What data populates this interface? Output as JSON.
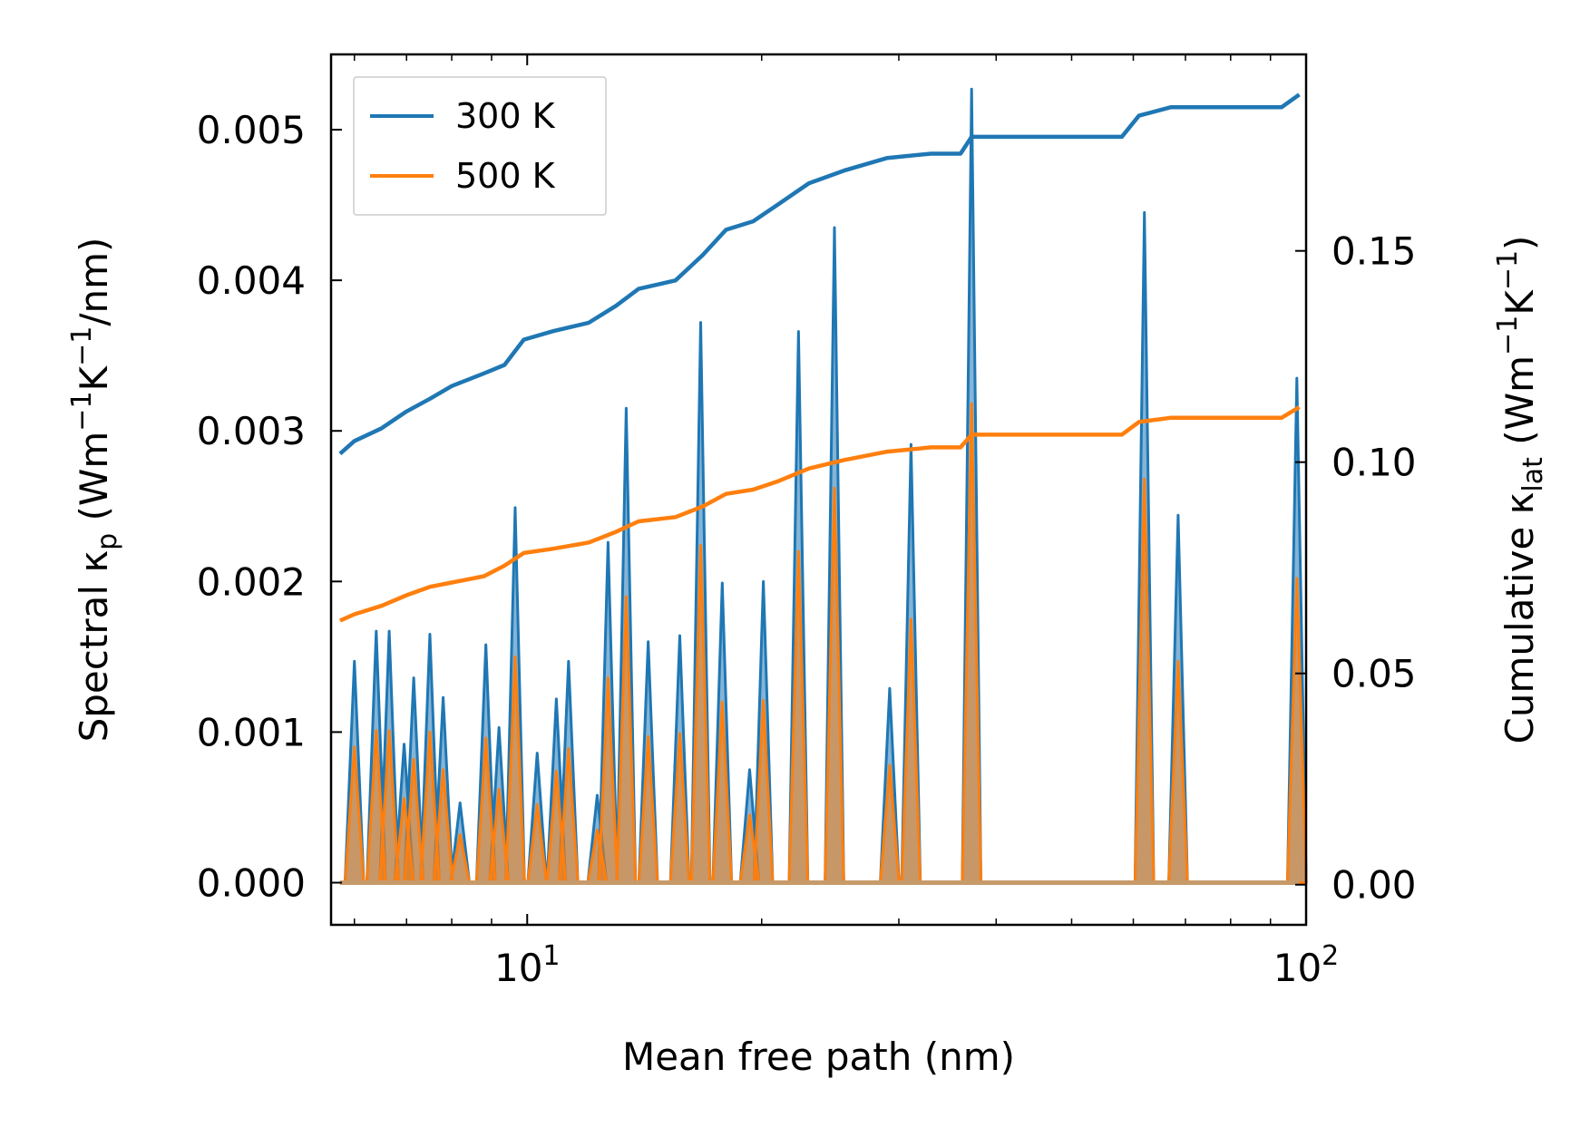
{
  "chart_data": {
    "type": "line",
    "xscale": "log",
    "xlabel": "Mean free path (nm)",
    "ylabel_left": "Spectral κ",
    "ylabel_left_sub": "p",
    "ylabel_left_units": "(Wm",
    "ylabel_right": "Cumulative κ",
    "ylabel_right_sub": "lat",
    "ylabel_right_units": "(Wm",
    "xlim": [
      5.6,
      100
    ],
    "ylim_left": [
      -0.00028,
      0.0055
    ],
    "ylim_right": [
      -0.0095,
      0.1965
    ],
    "x_ticks": [
      {
        "value": 10,
        "label": "10",
        "exp": "1"
      },
      {
        "value": 100,
        "label": "10",
        "exp": "2"
      }
    ],
    "y_left_ticks": [
      {
        "value": 0.0,
        "label": "0.000"
      },
      {
        "value": 0.001,
        "label": "0.001"
      },
      {
        "value": 0.002,
        "label": "0.002"
      },
      {
        "value": 0.003,
        "label": "0.003"
      },
      {
        "value": 0.004,
        "label": "0.004"
      },
      {
        "value": 0.005,
        "label": "0.005"
      }
    ],
    "y_right_ticks": [
      {
        "value": 0.0,
        "label": "0.00"
      },
      {
        "value": 0.05,
        "label": "0.05"
      },
      {
        "value": 0.1,
        "label": "0.10"
      },
      {
        "value": 0.15,
        "label": "0.15"
      }
    ],
    "legend": {
      "placement": "top-left",
      "entries": [
        {
          "label": "300 K",
          "color": "#1f77b4"
        },
        {
          "label": "500 K",
          "color": "#ff7f0e"
        }
      ]
    },
    "series": [
      {
        "name": "300 K",
        "color": "#1f77b4",
        "spectral_peaks": [
          [
            6.0,
            0.00147
          ],
          [
            6.4,
            0.00167
          ],
          [
            6.65,
            0.00167
          ],
          [
            6.95,
            0.00092
          ],
          [
            7.15,
            0.00136
          ],
          [
            7.5,
            0.00165
          ],
          [
            7.8,
            0.00123
          ],
          [
            8.2,
            0.00053
          ],
          [
            8.85,
            0.00158
          ],
          [
            9.2,
            0.00103
          ],
          [
            9.65,
            0.00249
          ],
          [
            10.3,
            0.00086
          ],
          [
            10.9,
            0.00122
          ],
          [
            11.3,
            0.00147
          ],
          [
            12.3,
            0.00058
          ],
          [
            12.7,
            0.00226
          ],
          [
            13.4,
            0.00315
          ],
          [
            14.3,
            0.0016
          ],
          [
            15.7,
            0.00164
          ],
          [
            16.7,
            0.00372
          ],
          [
            17.8,
            0.00199
          ],
          [
            19.3,
            0.00075
          ],
          [
            20.1,
            0.002
          ],
          [
            22.3,
            0.00366
          ],
          [
            24.8,
            0.00435
          ],
          [
            29.2,
            0.00129
          ],
          [
            31.1,
            0.00291
          ],
          [
            37.2,
            0.00527
          ],
          [
            62.0,
            0.00445
          ],
          [
            68.5,
            0.00244
          ],
          [
            97.3,
            0.00335
          ]
        ],
        "cumulative": [
          [
            5.75,
            0.102
          ],
          [
            6.0,
            0.105
          ],
          [
            6.5,
            0.108
          ],
          [
            7.0,
            0.112
          ],
          [
            7.5,
            0.115
          ],
          [
            8.0,
            0.118
          ],
          [
            8.8,
            0.121
          ],
          [
            9.35,
            0.123
          ],
          [
            9.9,
            0.129
          ],
          [
            10.8,
            0.131
          ],
          [
            12.0,
            0.133
          ],
          [
            13.0,
            0.137
          ],
          [
            13.9,
            0.141
          ],
          [
            15.5,
            0.143
          ],
          [
            16.8,
            0.149
          ],
          [
            18.0,
            0.155
          ],
          [
            19.5,
            0.157
          ],
          [
            21.0,
            0.161
          ],
          [
            23.0,
            0.166
          ],
          [
            25.5,
            0.169
          ],
          [
            29.0,
            0.172
          ],
          [
            33.0,
            0.173
          ],
          [
            36.0,
            0.173
          ],
          [
            37.2,
            0.177
          ],
          [
            58.0,
            0.177
          ],
          [
            61.0,
            0.182
          ],
          [
            67.0,
            0.184
          ],
          [
            93.0,
            0.184
          ],
          [
            98.0,
            0.187
          ]
        ]
      },
      {
        "name": "500 K",
        "color": "#ff7f0e",
        "spectral_peaks": [
          [
            6.0,
            0.0009
          ],
          [
            6.4,
            0.00101
          ],
          [
            6.65,
            0.00101
          ],
          [
            6.95,
            0.00056
          ],
          [
            7.15,
            0.00082
          ],
          [
            7.5,
            0.001
          ],
          [
            7.8,
            0.00075
          ],
          [
            8.2,
            0.00032
          ],
          [
            8.85,
            0.00096
          ],
          [
            9.2,
            0.00062
          ],
          [
            9.65,
            0.0015
          ],
          [
            10.3,
            0.00052
          ],
          [
            10.9,
            0.00074
          ],
          [
            11.3,
            0.00089
          ],
          [
            12.3,
            0.00035
          ],
          [
            12.7,
            0.00136
          ],
          [
            13.4,
            0.0019
          ],
          [
            14.3,
            0.00097
          ],
          [
            15.7,
            0.00099
          ],
          [
            16.7,
            0.00224
          ],
          [
            17.8,
            0.0012
          ],
          [
            19.3,
            0.00045
          ],
          [
            20.1,
            0.00121
          ],
          [
            22.3,
            0.0022
          ],
          [
            24.8,
            0.00262
          ],
          [
            29.2,
            0.00078
          ],
          [
            31.1,
            0.00175
          ],
          [
            37.2,
            0.00318
          ],
          [
            62.0,
            0.00268
          ],
          [
            68.5,
            0.00147
          ],
          [
            97.3,
            0.00202
          ]
        ],
        "cumulative": [
          [
            5.75,
            0.0625
          ],
          [
            6.0,
            0.064
          ],
          [
            6.5,
            0.066
          ],
          [
            7.0,
            0.0685
          ],
          [
            7.5,
            0.0705
          ],
          [
            8.0,
            0.0715
          ],
          [
            8.8,
            0.073
          ],
          [
            9.35,
            0.0755
          ],
          [
            9.9,
            0.0785
          ],
          [
            10.8,
            0.0795
          ],
          [
            12.0,
            0.081
          ],
          [
            13.0,
            0.0835
          ],
          [
            13.9,
            0.086
          ],
          [
            15.5,
            0.087
          ],
          [
            16.8,
            0.0895
          ],
          [
            18.0,
            0.0925
          ],
          [
            19.5,
            0.0935
          ],
          [
            21.0,
            0.0955
          ],
          [
            23.0,
            0.0985
          ],
          [
            25.5,
            0.1005
          ],
          [
            29.0,
            0.1025
          ],
          [
            33.0,
            0.1035
          ],
          [
            36.0,
            0.1035
          ],
          [
            37.2,
            0.1065
          ],
          [
            58.0,
            0.1065
          ],
          [
            61.0,
            0.1095
          ],
          [
            67.0,
            0.1105
          ],
          [
            93.0,
            0.1105
          ],
          [
            98.0,
            0.113
          ]
        ]
      }
    ]
  }
}
